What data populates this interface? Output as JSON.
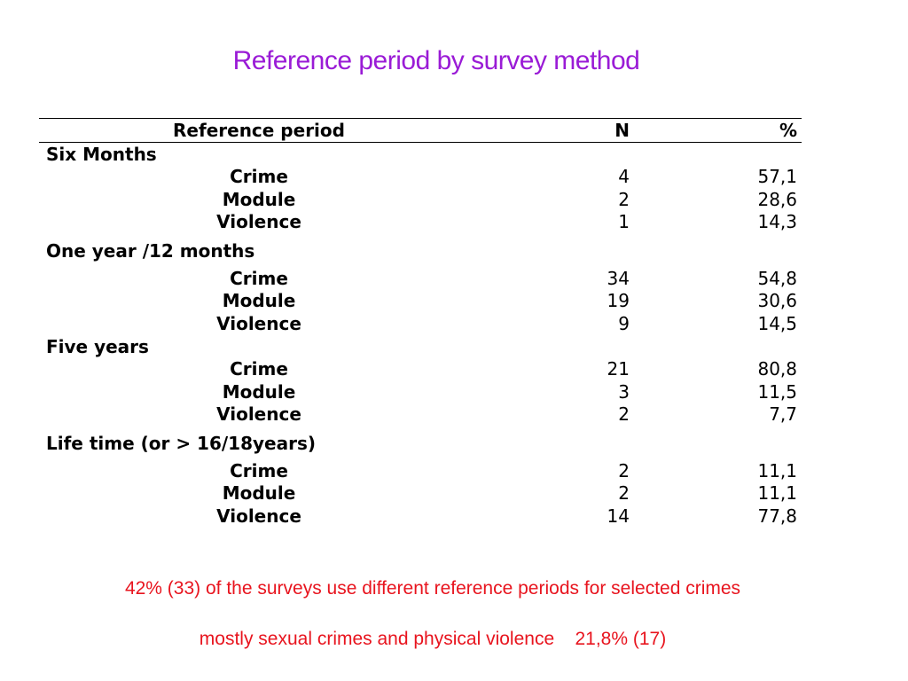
{
  "title": "Reference period by survey method",
  "table": {
    "headers": {
      "label": "Reference period",
      "n": "N",
      "pct": "%"
    },
    "groups": [
      {
        "name": "Six Months",
        "rows": [
          {
            "label": "Crime",
            "n": "4",
            "pct": "57,1"
          },
          {
            "label": "Module",
            "n": "2",
            "pct": "28,6"
          },
          {
            "label": "Violence",
            "n": "1",
            "pct": "14,3"
          }
        ]
      },
      {
        "name": "One year /12 months",
        "rows": [
          {
            "label": "Crime",
            "n": "34",
            "pct": "54,8"
          },
          {
            "label": "Module",
            "n": "19",
            "pct": "30,6"
          },
          {
            "label": "Violence",
            "n": "9",
            "pct": "14,5"
          }
        ]
      },
      {
        "name": "Five years",
        "rows": [
          {
            "label": "Crime",
            "n": "21",
            "pct": "80,8"
          },
          {
            "label": "Module",
            "n": "3",
            "pct": "11,5"
          },
          {
            "label": "Violence",
            "n": "2",
            "pct": "7,7"
          }
        ]
      },
      {
        "name": "Life time (or > 16/18years)",
        "rows": [
          {
            "label": "Crime",
            "n": "2",
            "pct": "11,1"
          },
          {
            "label": "Module",
            "n": "2",
            "pct": "11,1"
          },
          {
            "label": "Violence",
            "n": "14",
            "pct": "77,8"
          }
        ]
      }
    ]
  },
  "notes": [
    "42% (33) of the surveys use different reference periods for selected crimes",
    "mostly sexual crimes and physical violence    21,8% (17)"
  ],
  "colors": {
    "title": "#9a1bd6",
    "notes": "#e8141e",
    "text": "#000000"
  }
}
